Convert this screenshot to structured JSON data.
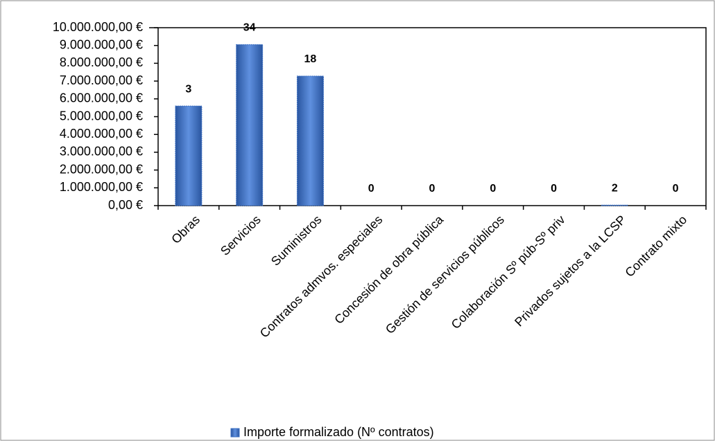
{
  "chart_data": {
    "type": "bar",
    "categories": [
      "Obras",
      "Servicios",
      "Suministros",
      "Contratos admvos. especiales",
      "Concesión de obra pública",
      "Gestión de servicios públicos",
      "Colaboración Sº púb-Sº priv",
      "Privados sujetos a la LCSP",
      "Contrato mixto"
    ],
    "series": [
      {
        "name": "Importe formalizado (Nº contratos)",
        "color": "#3a6fc4",
        "values": [
          5600000,
          9050000,
          7280000,
          0,
          0,
          0,
          0,
          30000,
          0
        ]
      }
    ],
    "contract_counts": [
      3,
      34,
      18,
      0,
      0,
      0,
      0,
      2,
      0
    ],
    "ylim": [
      0,
      10000000
    ],
    "yticks": [
      {
        "value": 0,
        "label": "0,00 €"
      },
      {
        "value": 1000000,
        "label": "1.000.000,00 €"
      },
      {
        "value": 2000000,
        "label": "2.000.000,00 €"
      },
      {
        "value": 3000000,
        "label": "3.000.000,00 €"
      },
      {
        "value": 4000000,
        "label": "4.000.000,00 €"
      },
      {
        "value": 5000000,
        "label": "5.000.000,00 €"
      },
      {
        "value": 6000000,
        "label": "6.000.000,00 €"
      },
      {
        "value": 7000000,
        "label": "7.000.000,00 €"
      },
      {
        "value": 8000000,
        "label": "8.000.000,00 €"
      },
      {
        "value": 9000000,
        "label": "9.000.000,00 €"
      },
      {
        "value": 10000000,
        "label": "10.000.000,00 €"
      }
    ],
    "grid": false,
    "legend": "bottom"
  }
}
